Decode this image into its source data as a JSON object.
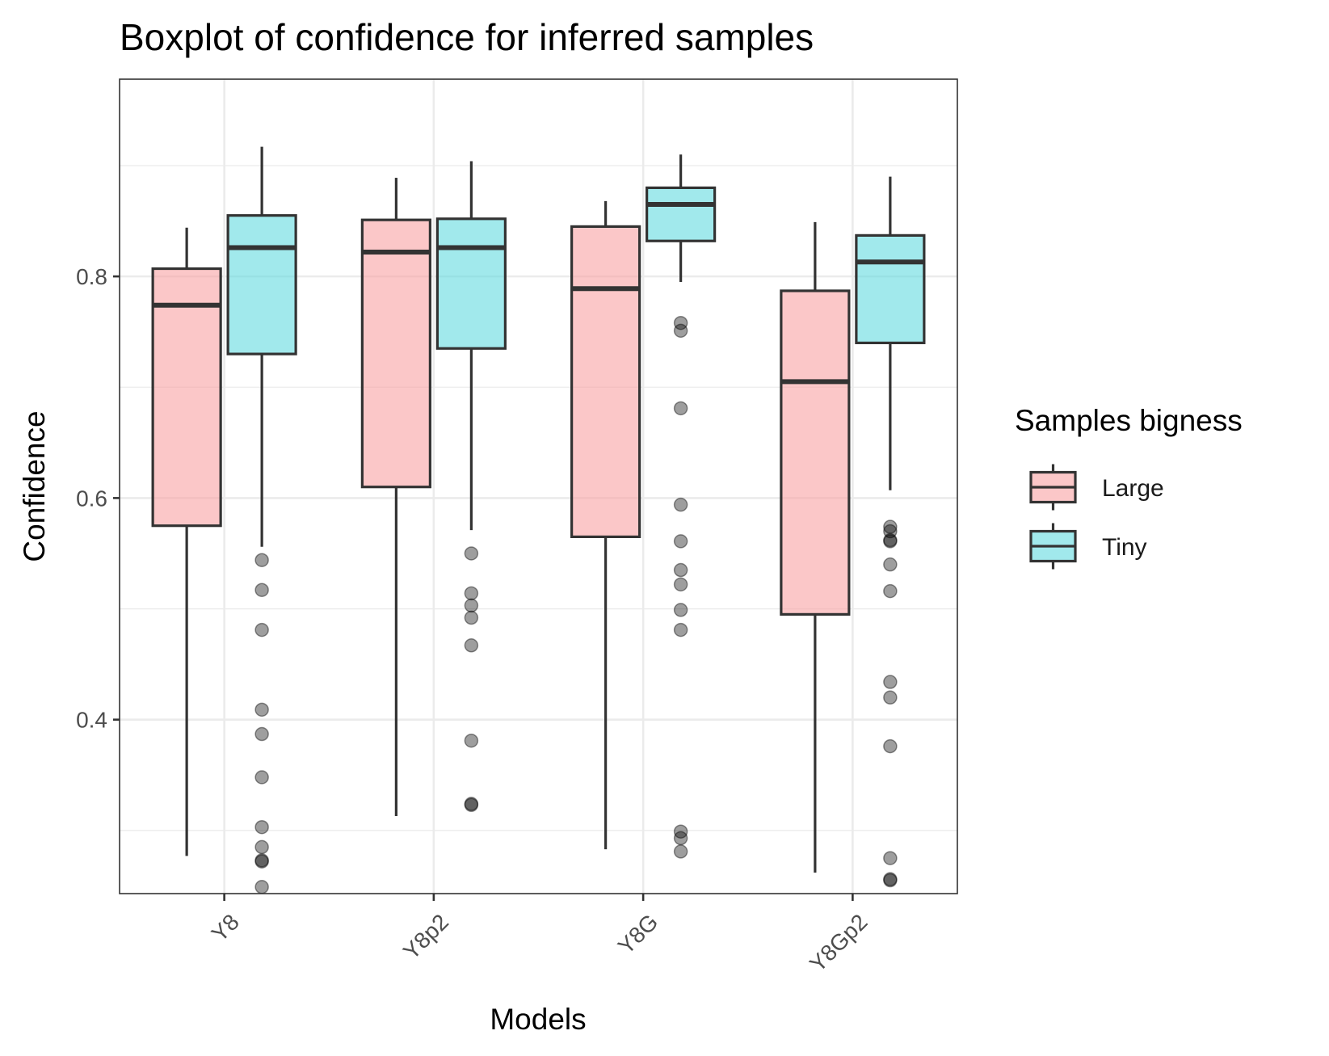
{
  "chart_data": {
    "type": "boxplot",
    "title": "Boxplot of confidence for inferred samples",
    "xlabel": "Models",
    "ylabel": "Confidence",
    "categories": [
      "Y8",
      "Y8p2",
      "Y8G",
      "Y8Gp2"
    ],
    "ylim": [
      0.243,
      0.978
    ],
    "yticks": [
      0.4,
      0.6,
      0.8
    ],
    "ytick_labels": [
      "0.4",
      "0.6",
      "0.8"
    ],
    "grid": true,
    "legend": {
      "title": "Samples bigness",
      "position": "right",
      "entries": [
        "Large",
        "Tiny"
      ]
    },
    "colors": {
      "Large": "#f8a5a6",
      "Tiny": "#67dbe1"
    },
    "series": [
      {
        "name": "Large",
        "boxes": [
          {
            "category": "Y8",
            "whisker_low": 0.277,
            "q1": 0.575,
            "median": 0.774,
            "q3": 0.807,
            "whisker_high": 0.844,
            "outliers": []
          },
          {
            "category": "Y8p2",
            "whisker_low": 0.313,
            "q1": 0.61,
            "median": 0.822,
            "q3": 0.851,
            "whisker_high": 0.889,
            "outliers": []
          },
          {
            "category": "Y8G",
            "whisker_low": 0.283,
            "q1": 0.565,
            "median": 0.789,
            "q3": 0.845,
            "whisker_high": 0.868,
            "outliers": []
          },
          {
            "category": "Y8Gp2",
            "whisker_low": 0.262,
            "q1": 0.495,
            "median": 0.705,
            "q3": 0.787,
            "whisker_high": 0.849,
            "outliers": []
          }
        ]
      },
      {
        "name": "Tiny",
        "boxes": [
          {
            "category": "Y8",
            "whisker_low": 0.556,
            "q1": 0.73,
            "median": 0.826,
            "q3": 0.855,
            "whisker_high": 0.917,
            "outliers": [
              0.544,
              0.517,
              0.481,
              0.409,
              0.387,
              0.348,
              0.303,
              0.285,
              0.273,
              0.272,
              0.249
            ]
          },
          {
            "category": "Y8p2",
            "whisker_low": 0.571,
            "q1": 0.735,
            "median": 0.826,
            "q3": 0.852,
            "whisker_high": 0.904,
            "outliers": [
              0.55,
              0.514,
              0.503,
              0.492,
              0.467,
              0.381,
              0.324,
              0.323
            ]
          },
          {
            "category": "Y8G",
            "whisker_low": 0.795,
            "q1": 0.832,
            "median": 0.865,
            "q3": 0.88,
            "whisker_high": 0.91,
            "outliers": [
              0.758,
              0.751,
              0.681,
              0.594,
              0.561,
              0.535,
              0.522,
              0.499,
              0.481,
              0.299,
              0.293,
              0.281
            ]
          },
          {
            "category": "Y8Gp2",
            "whisker_low": 0.607,
            "q1": 0.74,
            "median": 0.813,
            "q3": 0.837,
            "whisker_high": 0.89,
            "outliers": [
              0.574,
              0.57,
              0.562,
              0.561,
              0.54,
              0.516,
              0.434,
              0.42,
              0.376,
              0.275,
              0.256,
              0.255
            ]
          }
        ]
      }
    ]
  }
}
